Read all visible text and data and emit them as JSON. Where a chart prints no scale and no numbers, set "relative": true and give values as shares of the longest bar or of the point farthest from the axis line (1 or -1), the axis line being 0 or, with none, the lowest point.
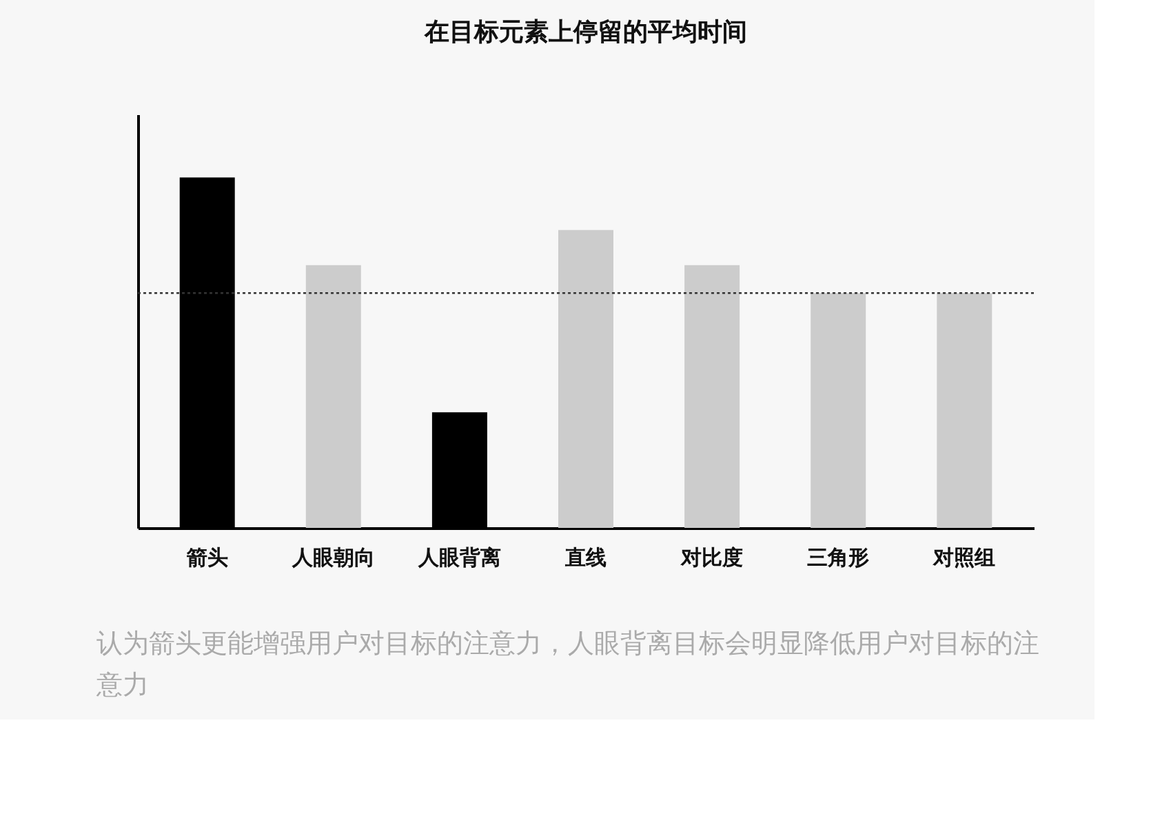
{
  "chart_data": {
    "type": "bar",
    "title": "在目标元素上停留的平均时间",
    "categories": [
      "箭头",
      "人眼朝向",
      "人眼背离",
      "直线",
      "对比度",
      "三角形",
      "对照组"
    ],
    "values": [
      1,
      0.75,
      0.33,
      0.85,
      0.75,
      0.67,
      0.67
    ],
    "colors": [
      "#000000",
      "#cccccc",
      "#000000",
      "#cccccc",
      "#cccccc",
      "#cccccc",
      "#cccccc"
    ],
    "relative": true,
    "ref_lines": [
      {
        "axis": "y",
        "value": 0.67,
        "color": "#333333",
        "line_style": "dotted"
      }
    ],
    "annotations": [
      "认为箭头更能增强用户对目标的注意力，人眼背离目标会明显降低用户对目标的注意力"
    ]
  }
}
